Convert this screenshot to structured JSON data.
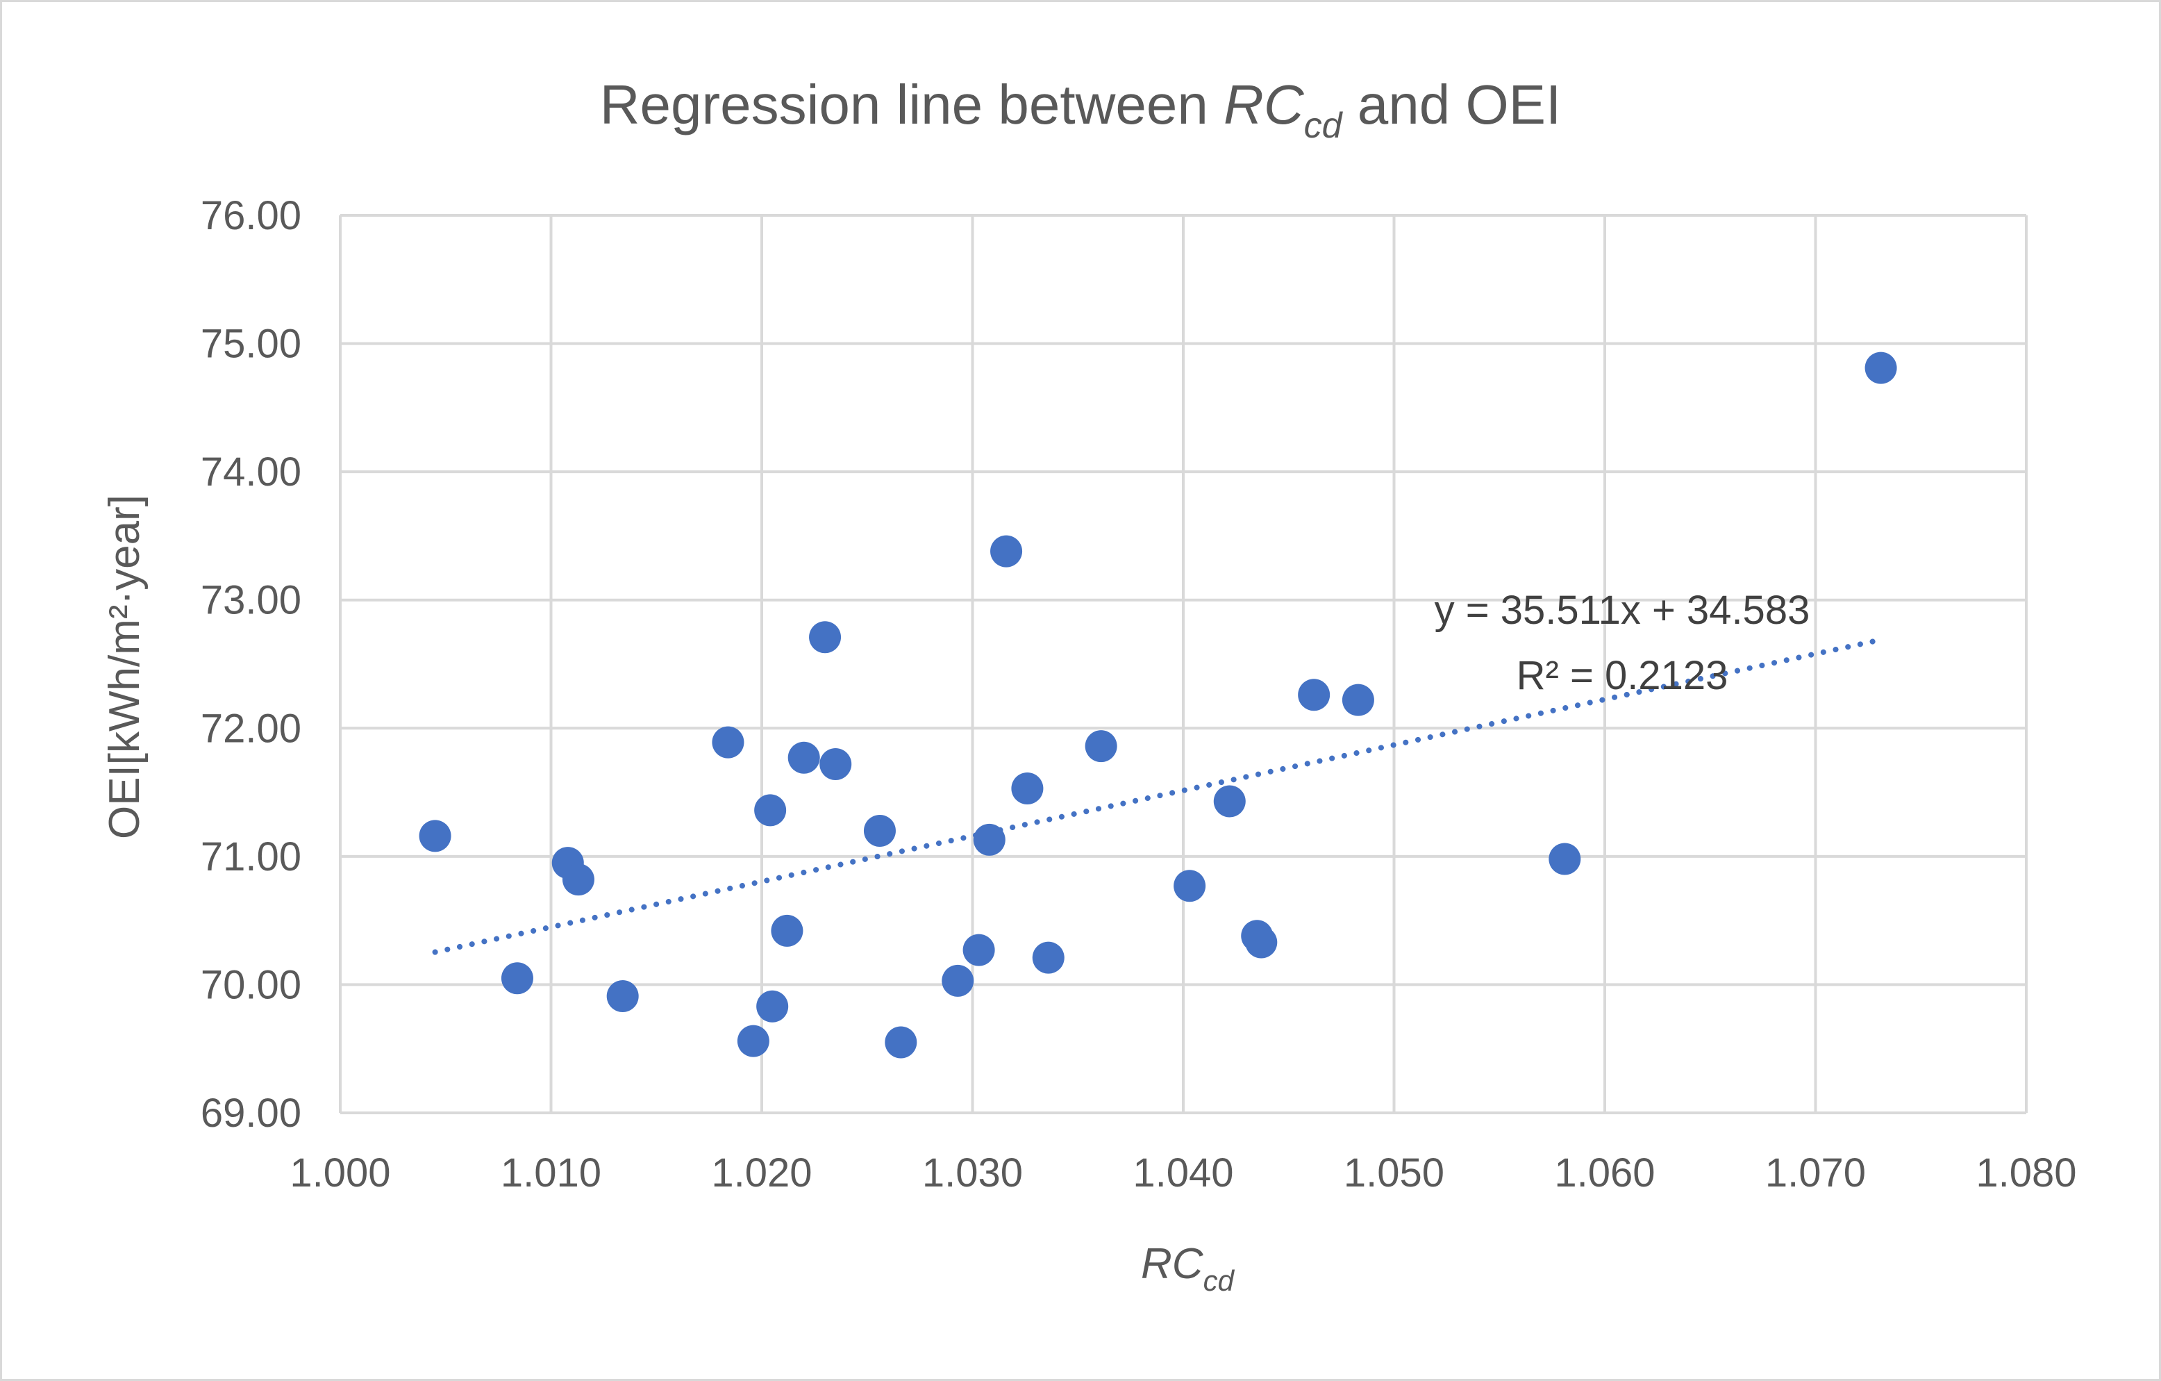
{
  "chart_data": {
    "type": "scatter",
    "title": {
      "prefix": "Regression line between ",
      "var_main": "RC",
      "var_sub": "cd",
      "suffix": " and OEI"
    },
    "xlabel": {
      "main": "RC",
      "sub": "cd"
    },
    "ylabel": "OEI[kWh/m²·year]",
    "xlim": [
      1.0,
      1.08
    ],
    "ylim": [
      69.0,
      76.0
    ],
    "x_ticks": [
      "1.000",
      "1.010",
      "1.020",
      "1.030",
      "1.040",
      "1.050",
      "1.060",
      "1.070",
      "1.080"
    ],
    "y_ticks": [
      "69.00",
      "70.00",
      "71.00",
      "72.00",
      "73.00",
      "74.00",
      "75.00",
      "76.00"
    ],
    "grid": true,
    "marker_color": "#4472C4",
    "trendline": {
      "type": "linear",
      "slope": 35.511,
      "intercept": 34.583,
      "x_range": [
        1.0045,
        1.0731
      ],
      "style": "dotted",
      "equation": "y = 35.511x + 34.583",
      "r_squared": "R² = 0.2123"
    },
    "series": [
      {
        "name": "OEI",
        "points": [
          [
            1.0045,
            71.16
          ],
          [
            1.0084,
            70.05
          ],
          [
            1.0108,
            70.95
          ],
          [
            1.0113,
            70.82
          ],
          [
            1.0134,
            69.91
          ],
          [
            1.0184,
            71.89
          ],
          [
            1.0196,
            69.56
          ],
          [
            1.0204,
            71.36
          ],
          [
            1.0205,
            69.83
          ],
          [
            1.0212,
            70.42
          ],
          [
            1.022,
            71.77
          ],
          [
            1.023,
            72.71
          ],
          [
            1.0235,
            71.72
          ],
          [
            1.0256,
            71.2
          ],
          [
            1.0266,
            69.55
          ],
          [
            1.0293,
            70.03
          ],
          [
            1.0303,
            70.27
          ],
          [
            1.0308,
            71.13
          ],
          [
            1.0316,
            73.38
          ],
          [
            1.0326,
            71.53
          ],
          [
            1.0336,
            70.21
          ],
          [
            1.0361,
            71.86
          ],
          [
            1.0403,
            70.77
          ],
          [
            1.0422,
            71.43
          ],
          [
            1.0435,
            70.38
          ],
          [
            1.0437,
            70.33
          ],
          [
            1.0462,
            72.26
          ],
          [
            1.0483,
            72.22
          ],
          [
            1.0581,
            70.98
          ],
          [
            1.0731,
            74.81
          ]
        ]
      }
    ]
  }
}
